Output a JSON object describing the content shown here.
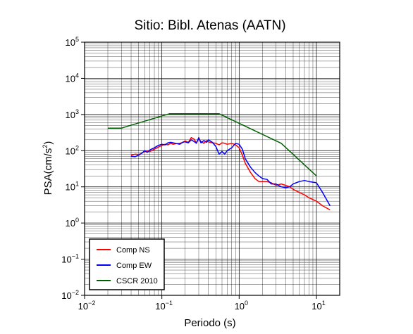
{
  "chart_data": {
    "type": "line",
    "title": "Sitio: Bibl. Atenas (AATN)",
    "xlabel": "Periodo (s)",
    "ylabel": "PSA(cm/s²)",
    "x_scale": "log",
    "y_scale": "log",
    "xlim": [
      0.01,
      20
    ],
    "ylim": [
      0.01,
      100000
    ],
    "grid": true,
    "legend_placement": "bottom-left",
    "x_ticks": [
      {
        "value": 0.01,
        "base": "10",
        "exp": "−2"
      },
      {
        "value": 0.1,
        "base": "10",
        "exp": "−1"
      },
      {
        "value": 1,
        "base": "10",
        "exp": "0"
      },
      {
        "value": 10,
        "base": "10",
        "exp": "1"
      }
    ],
    "y_ticks": [
      {
        "value": 0.01,
        "base": "10",
        "exp": "−2"
      },
      {
        "value": 0.1,
        "base": "10",
        "exp": "−1"
      },
      {
        "value": 1,
        "base": "10",
        "exp": "0"
      },
      {
        "value": 10,
        "base": "10",
        "exp": "1"
      },
      {
        "value": 100,
        "base": "10",
        "exp": "2"
      },
      {
        "value": 1000,
        "base": "10",
        "exp": "3"
      },
      {
        "value": 10000,
        "base": "10",
        "exp": "4"
      },
      {
        "value": 100000,
        "base": "10",
        "exp": "5"
      }
    ],
    "series": [
      {
        "name": "Comp NS",
        "color": "#ff0000",
        "x": [
          0.04,
          0.045,
          0.05,
          0.055,
          0.06,
          0.065,
          0.07,
          0.08,
          0.09,
          0.1,
          0.11,
          0.12,
          0.13,
          0.14,
          0.15,
          0.17,
          0.19,
          0.2,
          0.22,
          0.24,
          0.26,
          0.28,
          0.3,
          0.32,
          0.35,
          0.38,
          0.4,
          0.45,
          0.5,
          0.55,
          0.6,
          0.65,
          0.7,
          0.8,
          0.9,
          1.0,
          1.1,
          1.2,
          1.4,
          1.6,
          1.8,
          2.0,
          2.3,
          2.6,
          3.0,
          3.5,
          4.0,
          4.5,
          5,
          6,
          7,
          8,
          10,
          12,
          15
        ],
        "y": [
          75,
          80,
          78,
          85,
          95,
          100,
          95,
          110,
          125,
          140,
          150,
          145,
          160,
          150,
          155,
          160,
          170,
          185,
          170,
          230,
          210,
          165,
          215,
          180,
          160,
          190,
          175,
          165,
          160,
          145,
          165,
          160,
          150,
          160,
          145,
          120,
          75,
          45,
          25,
          17,
          14,
          14,
          14,
          13,
          11,
          12,
          11,
          10,
          8.5,
          7,
          6,
          5,
          4,
          3,
          2.3
        ]
      },
      {
        "name": "Comp EW",
        "color": "#0000ff",
        "x": [
          0.04,
          0.045,
          0.05,
          0.055,
          0.06,
          0.065,
          0.07,
          0.08,
          0.09,
          0.1,
          0.11,
          0.12,
          0.13,
          0.14,
          0.15,
          0.17,
          0.19,
          0.2,
          0.22,
          0.24,
          0.26,
          0.28,
          0.3,
          0.32,
          0.35,
          0.38,
          0.4,
          0.45,
          0.5,
          0.55,
          0.6,
          0.65,
          0.7,
          0.8,
          0.9,
          1.0,
          1.1,
          1.2,
          1.4,
          1.6,
          1.8,
          2.0,
          2.3,
          2.6,
          3.0,
          3.5,
          4.0,
          4.5,
          5,
          6,
          7,
          8,
          10,
          12,
          15
        ],
        "y": [
          70,
          68,
          75,
          85,
          100,
          90,
          105,
          120,
          140,
          150,
          145,
          165,
          170,
          165,
          160,
          150,
          175,
          175,
          165,
          200,
          180,
          160,
          230,
          165,
          190,
          170,
          200,
          170,
          130,
          80,
          95,
          80,
          100,
          120,
          160,
          150,
          110,
          60,
          35,
          25,
          20,
          17,
          16,
          12,
          12,
          10,
          9.5,
          10,
          12,
          14,
          15,
          14,
          13,
          7,
          3
        ]
      },
      {
        "name": "CSCR 2010",
        "color": "#006000",
        "x": [
          0.02,
          0.03,
          0.125,
          0.55,
          3.5,
          10
        ],
        "y": [
          420,
          420,
          1050,
          1050,
          160,
          20
        ]
      }
    ]
  }
}
